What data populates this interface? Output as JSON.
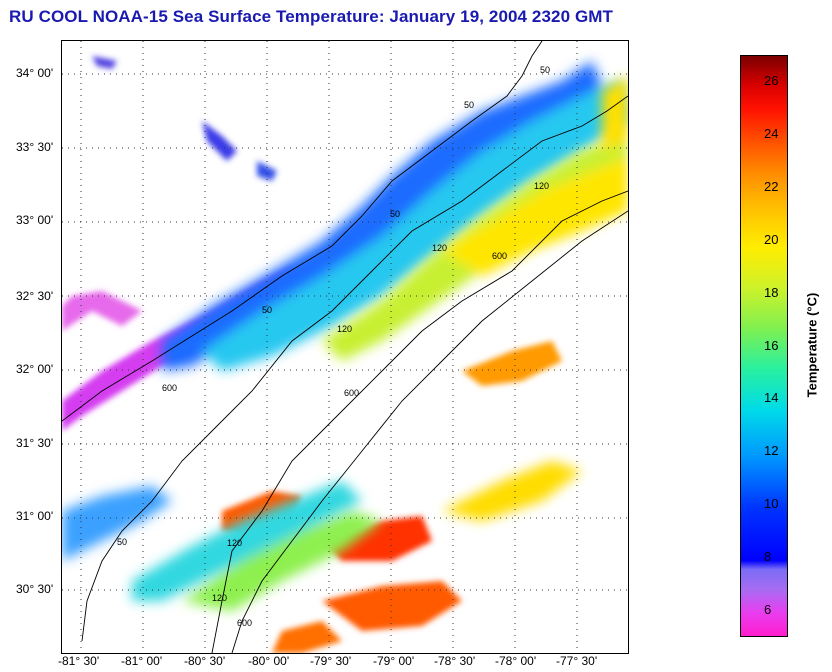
{
  "title": "RU COOL  NOAA-15  Sea Surface Temperature:  January 19, 2004 2320 GMT",
  "lat_labels": [
    "34° 00'",
    "33° 30'",
    "33° 00'",
    "32° 30'",
    "32° 00'",
    "31° 30'",
    "31° 00'",
    "30° 30'"
  ],
  "lon_labels": [
    "-81° 30'",
    "-81° 00'",
    "-80° 30'",
    "-80° 00'",
    "-79° 30'",
    "-79° 00'",
    "-78° 30'",
    "-78° 00'",
    "-77° 30'"
  ],
  "contour_labels": [
    "50",
    "50",
    "50",
    "50",
    "50",
    "120",
    "120",
    "120",
    "120",
    "120",
    "600",
    "600",
    "600",
    "600"
  ],
  "colorbar": {
    "label": "Temperature (°C)",
    "ticks": [
      "26",
      "24",
      "22",
      "20",
      "18",
      "16",
      "14",
      "12",
      "10",
      "8",
      "6"
    ],
    "min": 5,
    "max": 27
  },
  "colors": {
    "title": "#1a1ab0",
    "land": "#ffffff",
    "cold": "#ff1ecd",
    "warm": "#7c0000"
  }
}
